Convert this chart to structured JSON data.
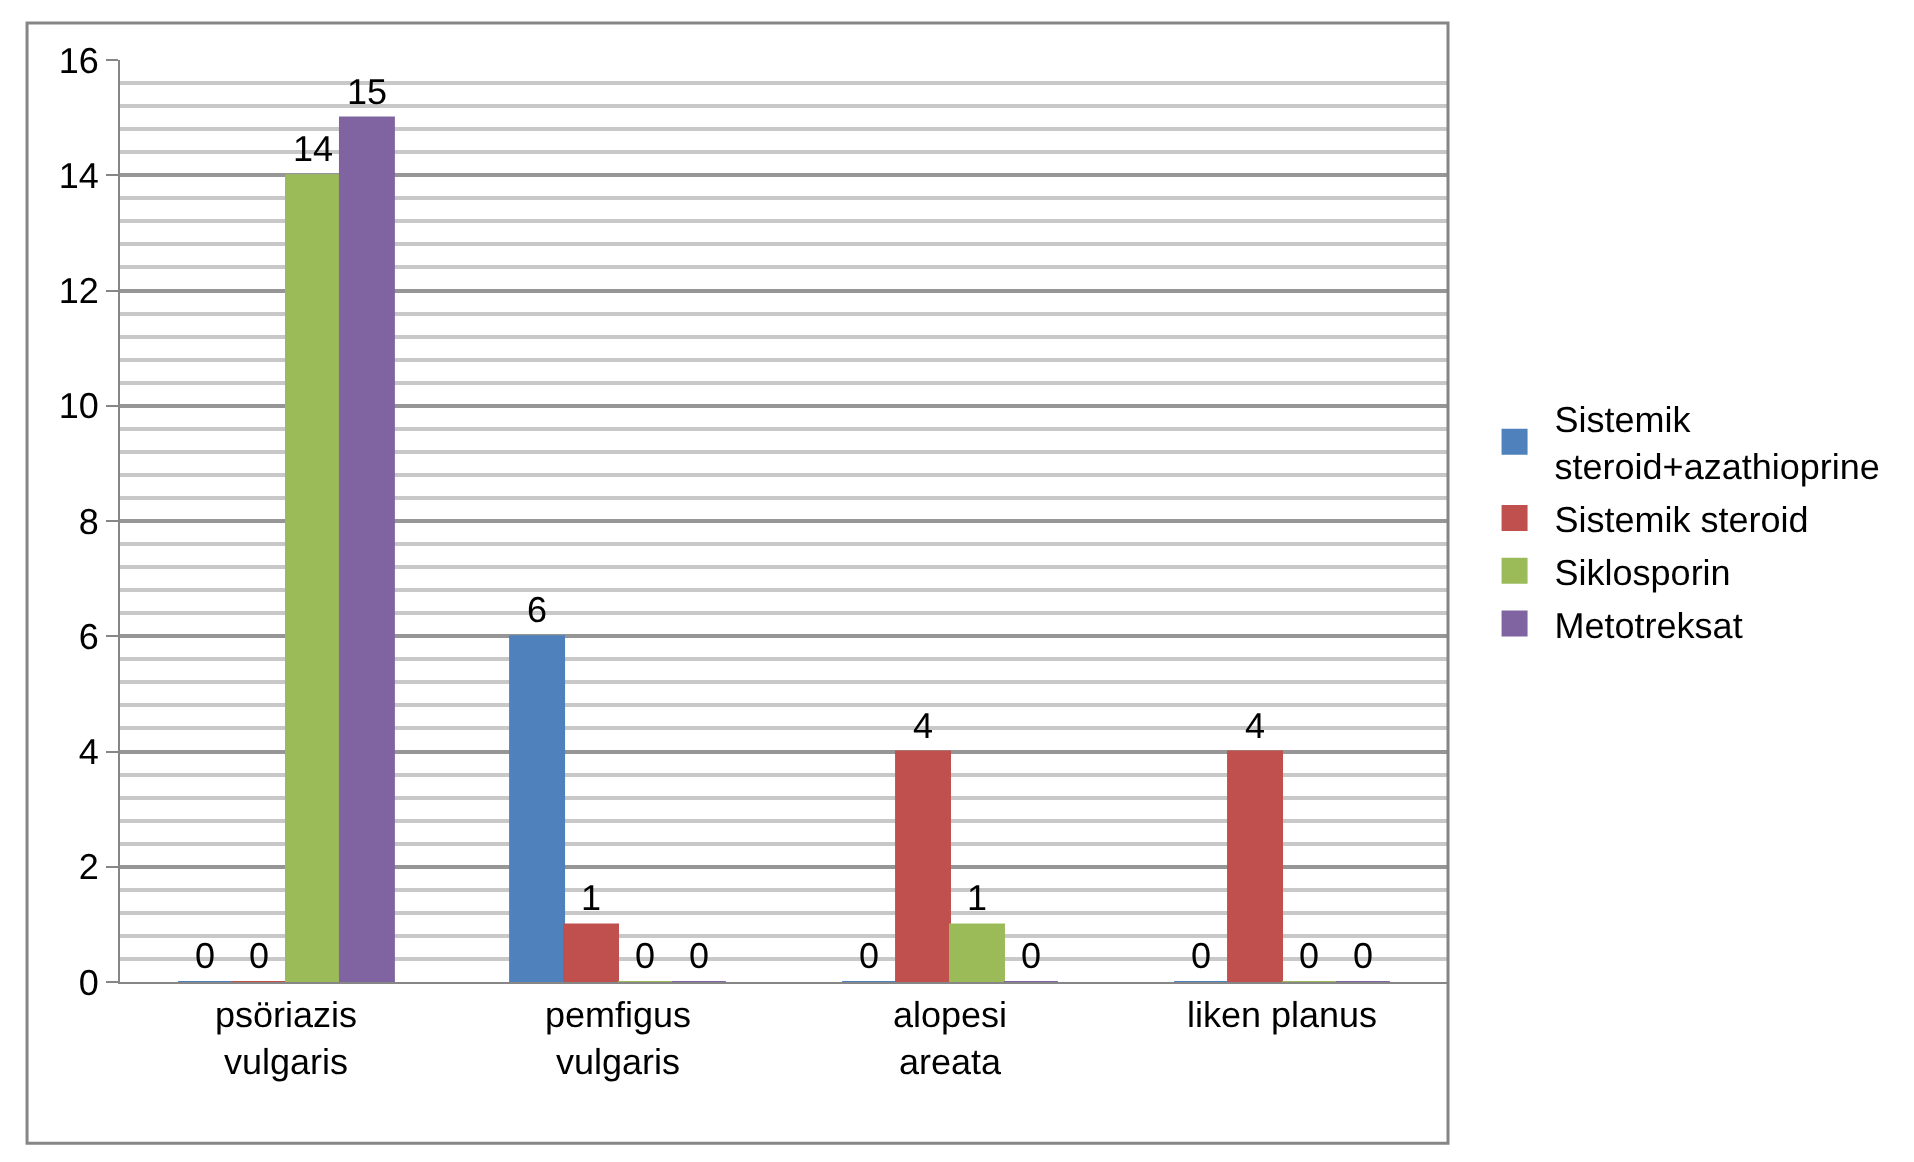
{
  "chart_data": {
    "type": "bar",
    "categories": [
      "psöriazis vulgaris",
      "pemfigus vulgaris",
      "alopesi areata",
      "liken planus"
    ],
    "series": [
      {
        "name": "Sistemik steroid+azathioprine",
        "color": "#4f81bd",
        "values": [
          0,
          6,
          0,
          0
        ]
      },
      {
        "name": "Sistemik steroid",
        "color": "#c0504d",
        "values": [
          0,
          1,
          4,
          4
        ]
      },
      {
        "name": "Siklosporin",
        "color": "#9bbb59",
        "values": [
          14,
          0,
          1,
          0
        ]
      },
      {
        "name": "Metotreksat",
        "color": "#8064a2",
        "values": [
          15,
          0,
          0,
          0
        ]
      }
    ],
    "ylim": [
      0,
      16
    ],
    "yticks": [
      0,
      2,
      4,
      6,
      8,
      10,
      12,
      14,
      16
    ],
    "grid": true,
    "legend": "right",
    "data_labels": true
  }
}
